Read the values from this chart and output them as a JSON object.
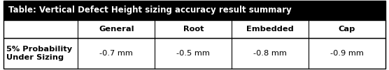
{
  "title": "Table: Vertical Defect Height sizing accuracy result summary",
  "col_headers": [
    "General",
    "Root",
    "Embedded",
    "Cap"
  ],
  "row_label": "5% Probability\nUnder Sizing",
  "values": [
    "-0.7 mm",
    "-0.5 mm",
    "-0.8 mm",
    "-0.9 mm"
  ],
  "title_bg": "#000000",
  "title_color": "#ffffff",
  "cell_bg": "#ffffff",
  "border_color": "#000000",
  "text_color": "#000000",
  "title_fontsize": 8.5,
  "header_fontsize": 8.2,
  "cell_fontsize": 8.2,
  "fig_width": 5.56,
  "fig_height": 1.01,
  "dpi": 100
}
